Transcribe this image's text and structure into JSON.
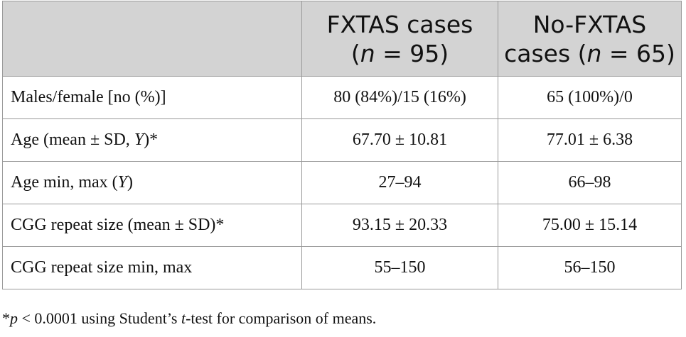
{
  "header": {
    "col0": "",
    "col1_line1": "FXTAS cases",
    "col1_line2_pre": "(",
    "col1_line2_n": "n",
    "col1_line2_post": " = 95)",
    "col2_line1": "No-FXTAS",
    "col2_line2_pre": "cases (",
    "col2_line2_n": "n",
    "col2_line2_post": " = 65)"
  },
  "rows": [
    {
      "label_pre": "Males/female [no (%)]",
      "label_var": "",
      "label_post": "",
      "fxtas": "80 (84%)/15 (16%)",
      "no_fxtas": "65 (100%)/0"
    },
    {
      "label_pre": "Age (mean ± SD, ",
      "label_var": "Y",
      "label_post": ")*",
      "fxtas": "67.70 ± 10.81",
      "no_fxtas": "77.01 ± 6.38"
    },
    {
      "label_pre": "Age min, max (",
      "label_var": "Y",
      "label_post": ")",
      "fxtas": "27–94",
      "no_fxtas": "66–98"
    },
    {
      "label_pre": "CGG repeat size (mean ± SD)*",
      "label_var": "",
      "label_post": "",
      "fxtas": "93.15 ± 20.33",
      "no_fxtas": "75.00 ± 15.14"
    },
    {
      "label_pre": "CGG repeat size min, max",
      "label_var": "",
      "label_post": "",
      "fxtas": "55–150",
      "no_fxtas": "56–150"
    }
  ],
  "footnote": {
    "star": "*",
    "p": "p",
    "mid": " < 0.0001 using Student’s ",
    "t": "t",
    "end": "-test for comparison of means."
  }
}
